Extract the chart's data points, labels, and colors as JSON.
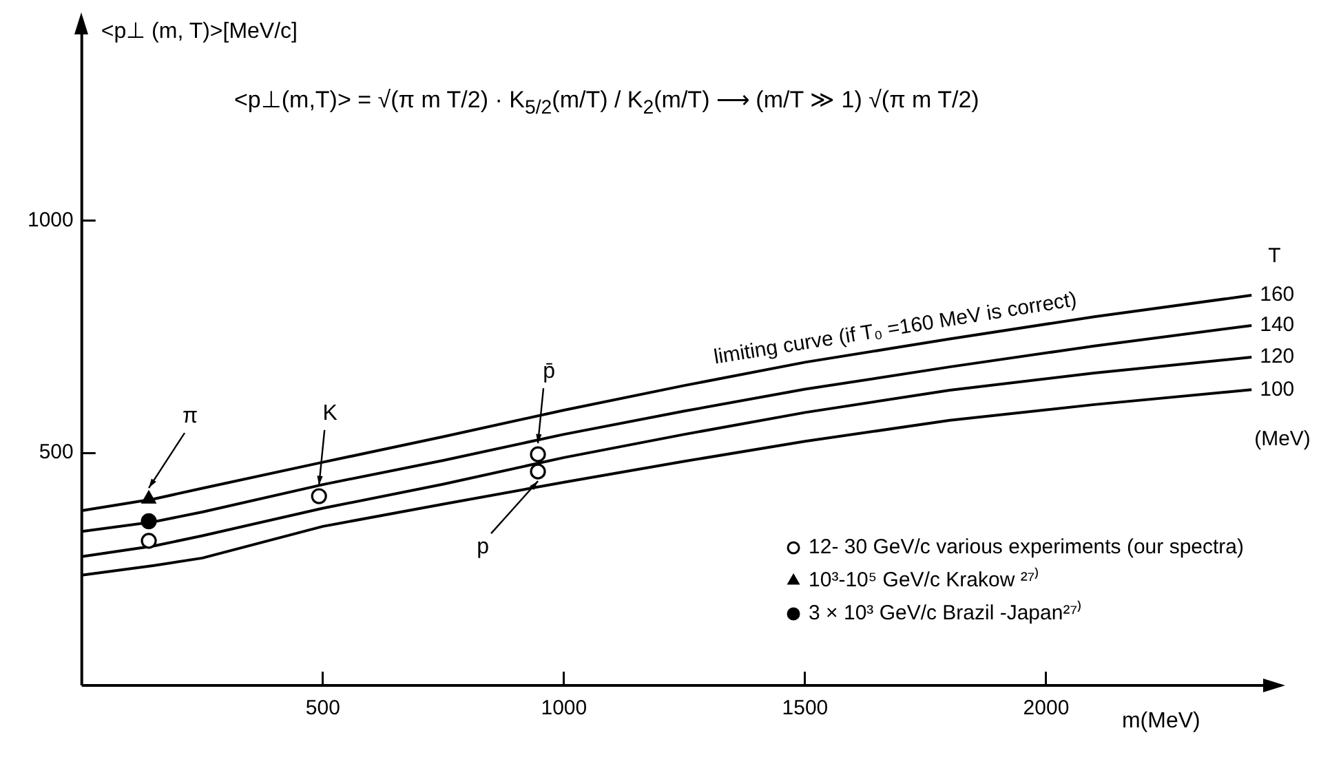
{
  "chart_data": {
    "type": "line",
    "ylabel": "<p⊥ (m, T)>[MeV/c]",
    "xlabel": "m(MeV)",
    "legend_title": "T",
    "xlim": [
      0,
      2450
    ],
    "ylim": [
      0,
      1400
    ],
    "xticks": [
      500,
      1000,
      1500,
      2000
    ],
    "yticks": [
      500,
      1000
    ],
    "grid": false,
    "legend": "bottom right",
    "marker": "none",
    "line_style": "solid",
    "annotations": [
      "<p⊥(m,T)> = √(π m T/2) · K$_{5/2}$(m/T) / K$_{2}$(m/T)  ⟶ (m/T ≫ 1)  √(π m T/2)",
      "limiting curve (if T₀ =160 MeV is correct)",
      "(MeV)",
      {
        "text": "π",
        "x": 139,
        "y": 401
      },
      {
        "text": "K",
        "x": 492,
        "y": 407
      },
      {
        "text": "p̄",
        "x": 946,
        "y": 497
      },
      {
        "text": "p",
        "x": 946,
        "y": 460
      }
    ],
    "series": [
      {
        "name": "160",
        "color": "#000000",
        "x": [
          0,
          150,
          250,
          500,
          750,
          1000,
          1250,
          1500,
          1800,
          2100,
          2426
        ],
        "values": [
          376,
          401,
          424,
          480,
          535,
          592,
          645,
          695,
          745,
          793,
          839
        ]
      },
      {
        "name": "140",
        "color": "#000000",
        "x": [
          0,
          150,
          250,
          500,
          750,
          1000,
          1250,
          1500,
          1800,
          2100,
          2426
        ],
        "values": [
          331,
          352,
          373,
          432,
          484,
          540,
          590,
          637,
          685,
          730,
          774
        ]
      },
      {
        "name": "120",
        "color": "#000000",
        "x": [
          0,
          150,
          250,
          500,
          750,
          1000,
          1250,
          1500,
          1800,
          2100,
          2426
        ],
        "values": [
          277,
          300,
          322,
          381,
          433,
          490,
          540,
          587,
          635,
          672,
          706
        ]
      },
      {
        "name": "100",
        "color": "#000000",
        "x": [
          0,
          150,
          250,
          500,
          750,
          1000,
          1250,
          1500,
          1800,
          2100,
          2426
        ],
        "values": [
          237,
          258,
          274,
          342,
          390,
          437,
          482,
          525,
          570,
          604,
          636
        ]
      },
      {
        "name": "12- 30 GeV/c various experiments (our spectra)",
        "type": "scatter",
        "marker": "circle",
        "color": "#ffffff",
        "x": [
          139,
          492,
          946,
          946
        ],
        "values": [
          311,
          407,
          497,
          460
        ]
      },
      {
        "name": "10³-10⁵ GeV/c Krakow ²⁷⁾",
        "type": "scatter",
        "marker": "triangle",
        "color": "#000000",
        "x": [
          139
        ],
        "values": [
          401
        ]
      },
      {
        "name": "3 × 10³ GeV/c Brazil -Japan²⁷⁾",
        "type": "scatter",
        "marker": "circle",
        "color": "#000000",
        "x": [
          139
        ],
        "values": [
          353
        ]
      }
    ]
  }
}
